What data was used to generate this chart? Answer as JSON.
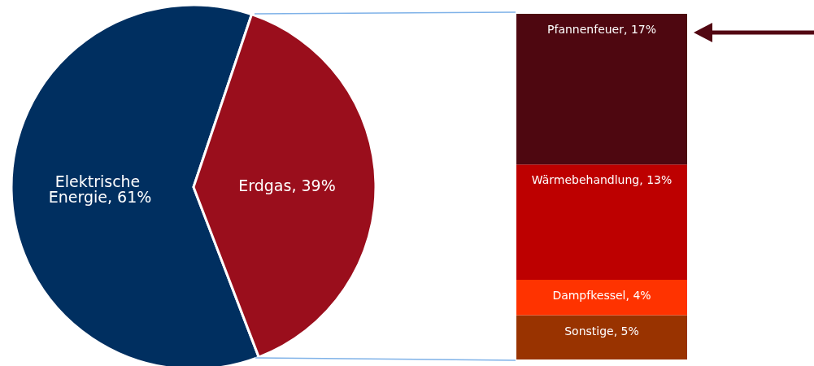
{
  "chart_data": [
    {
      "type": "pie",
      "categories": [
        "Elektrische Energie",
        "Erdgas"
      ],
      "values": [
        61,
        39
      ],
      "colors": [
        "#002f60",
        "#9a0e1c"
      ],
      "value_labels": [
        "61%",
        "39%"
      ],
      "legend": false
    },
    {
      "type": "bar",
      "stacked": true,
      "categories": [
        null
      ],
      "legend": false,
      "series": [
        {
          "color": "#993300",
          "values": [
            5
          ],
          "value_labels": [
            "Sonstige, 5%"
          ]
        },
        {
          "color": "#ff3300",
          "values": [
            4
          ],
          "value_labels": [
            "Dampfkessel, 4%"
          ]
        },
        {
          "color": "#bd0000",
          "values": [
            13
          ],
          "value_labels": [
            "Wärmebehandlung, 13%"
          ]
        },
        {
          "color": "#4e0710",
          "values": [
            17
          ],
          "value_labels": [
            "Pfannenfeuer, 17%"
          ]
        }
      ]
    }
  ]
}
